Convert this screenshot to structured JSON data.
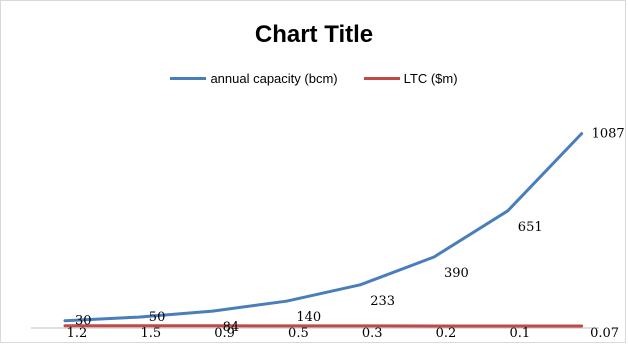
{
  "chart_data": {
    "type": "line",
    "title": "Chart Title",
    "categories": [
      "1.2",
      "1.5",
      "0.9",
      "0.5",
      "0.3",
      "0.2",
      "0.1",
      "0.07"
    ],
    "series": [
      {
        "name": "annual capacity (bcm)",
        "color": "#4a7ebb",
        "values": [
          30,
          50,
          84,
          140,
          233,
          390,
          651,
          1087
        ],
        "data_labels": [
          "30",
          "50",
          "84",
          "140",
          "233",
          "390",
          "651",
          "1087"
        ]
      },
      {
        "name": "LTC ($m)",
        "color": "#be4b48",
        "values": [
          1.2,
          1.5,
          0.9,
          0.5,
          0.3,
          0.2,
          0.1,
          0.07
        ]
      }
    ],
    "ylim": [
      0,
      1200
    ],
    "grid": false,
    "legend_position": "top"
  }
}
